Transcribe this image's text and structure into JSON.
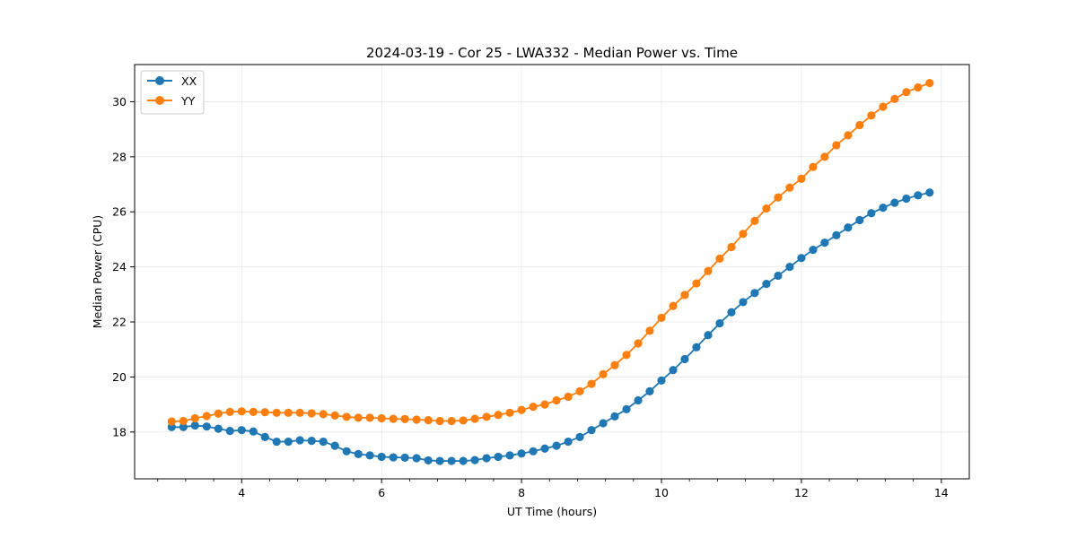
{
  "chart_data": {
    "type": "line",
    "title": "2024-03-19 - Cor 25 - LWA332 - Median Power vs. Time",
    "xlabel": "UT Time (hours)",
    "ylabel": "Median Power (CPU)",
    "xlim": [
      2.47,
      14.4
    ],
    "ylim": [
      16.3,
      31.35
    ],
    "xticks": [
      4,
      6,
      8,
      10,
      12,
      14
    ],
    "yticks": [
      18,
      20,
      22,
      24,
      26,
      28,
      30
    ],
    "grid": true,
    "legend_position": "top-left",
    "x": [
      3.0,
      3.167,
      3.333,
      3.5,
      3.667,
      3.833,
      4.0,
      4.167,
      4.333,
      4.5,
      4.667,
      4.833,
      5.0,
      5.167,
      5.333,
      5.5,
      5.667,
      5.833,
      6.0,
      6.167,
      6.333,
      6.5,
      6.667,
      6.833,
      7.0,
      7.167,
      7.333,
      7.5,
      7.667,
      7.833,
      8.0,
      8.167,
      8.333,
      8.5,
      8.667,
      8.833,
      9.0,
      9.167,
      9.333,
      9.5,
      9.667,
      9.833,
      10.0,
      10.167,
      10.333,
      10.5,
      10.667,
      10.833,
      11.0,
      11.167,
      11.333,
      11.5,
      11.667,
      11.833,
      12.0,
      12.167,
      12.333,
      12.5,
      12.667,
      12.833,
      13.0,
      13.167,
      13.333,
      13.5,
      13.667,
      13.833
    ],
    "series": [
      {
        "name": "XX",
        "color": "#1f77b4",
        "values": [
          18.18,
          18.18,
          18.24,
          18.2,
          18.12,
          18.04,
          18.07,
          18.02,
          17.82,
          17.65,
          17.65,
          17.7,
          17.68,
          17.65,
          17.5,
          17.3,
          17.2,
          17.15,
          17.1,
          17.08,
          17.07,
          17.05,
          16.97,
          16.95,
          16.95,
          16.95,
          16.98,
          17.05,
          17.1,
          17.15,
          17.22,
          17.3,
          17.4,
          17.5,
          17.65,
          17.82,
          18.07,
          18.32,
          18.57,
          18.83,
          19.15,
          19.48,
          19.87,
          20.25,
          20.65,
          21.08,
          21.52,
          21.95,
          22.35,
          22.72,
          23.05,
          23.38,
          23.68,
          24.0,
          24.32,
          24.62,
          24.88,
          25.15,
          25.43,
          25.7,
          25.95,
          26.15,
          26.33,
          26.48,
          26.6,
          26.7
        ]
      },
      {
        "name": "YY",
        "color": "#ff7f0e",
        "values": [
          18.38,
          18.4,
          18.5,
          18.58,
          18.67,
          18.73,
          18.75,
          18.73,
          18.72,
          18.7,
          18.7,
          18.7,
          18.68,
          18.65,
          18.6,
          18.55,
          18.52,
          18.52,
          18.5,
          18.48,
          18.47,
          18.45,
          18.43,
          18.4,
          18.4,
          18.42,
          18.48,
          18.55,
          18.62,
          18.7,
          18.8,
          18.92,
          19.0,
          19.15,
          19.28,
          19.48,
          19.75,
          20.1,
          20.43,
          20.8,
          21.22,
          21.68,
          22.15,
          22.58,
          22.98,
          23.4,
          23.85,
          24.3,
          24.72,
          25.2,
          25.67,
          26.12,
          26.52,
          26.88,
          27.2,
          27.63,
          28.0,
          28.42,
          28.78,
          29.15,
          29.5,
          29.82,
          30.1,
          30.35,
          30.52,
          30.68
        ]
      }
    ]
  }
}
